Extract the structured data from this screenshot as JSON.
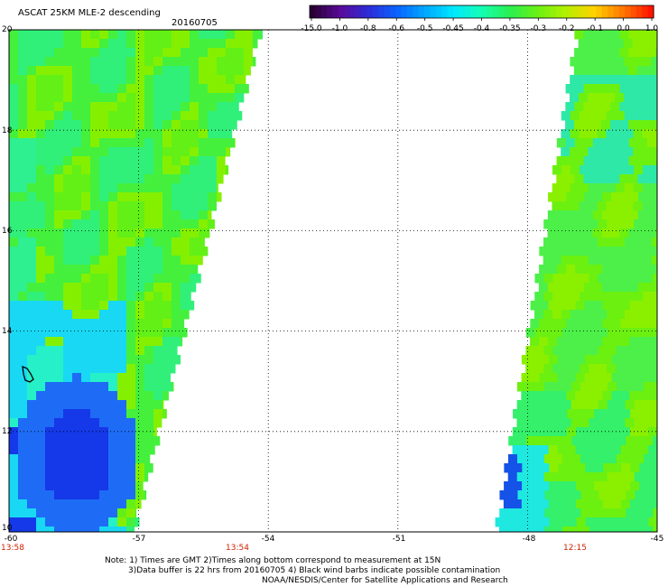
{
  "header": {
    "title": "ASCAT 25KM MLE-2 descending",
    "date": "20160705"
  },
  "colorbar": {
    "labels": [
      "-15.0",
      "-1.0",
      "-0.8",
      "-0.6",
      "-0.5",
      "-0.45",
      "-0.4",
      "-0.35",
      "-0.3",
      "-0.2",
      "-0.1",
      "0.0",
      "1.0"
    ],
    "colors": [
      "#2a0033",
      "#5a0a9a",
      "#2c2cd8",
      "#0a64ff",
      "#00a8ff",
      "#00e8ff",
      "#14ffb4",
      "#28f050",
      "#6cf014",
      "#b4f000",
      "#ffd200",
      "#ff7800",
      "#ff1400"
    ]
  },
  "map": {
    "lon_range": [
      -60,
      -45
    ],
    "lat_range": [
      10,
      20
    ],
    "lat_ticks": [
      "20",
      "18",
      "16",
      "14",
      "12",
      "10"
    ],
    "lon_ticks": [
      "-60",
      "-57",
      "-54",
      "-51",
      "-48",
      "-45"
    ],
    "pass_times": [
      {
        "lon": -60,
        "time": "13:58"
      },
      {
        "lon": -54.8,
        "time": "13:54"
      },
      {
        "lon": -46.6,
        "time": "12:15"
      }
    ]
  },
  "notes": {
    "line1": "Note: 1) Times are GMT 2)Times along bottom correspond to measurement at 15N",
    "line2": "3)Data buffer is 22 hrs from 20160705 4) Black wind barbs indicate possible contamination",
    "line3": "NOAA/NESDIS/Center for Satellite Applications and Research"
  }
}
